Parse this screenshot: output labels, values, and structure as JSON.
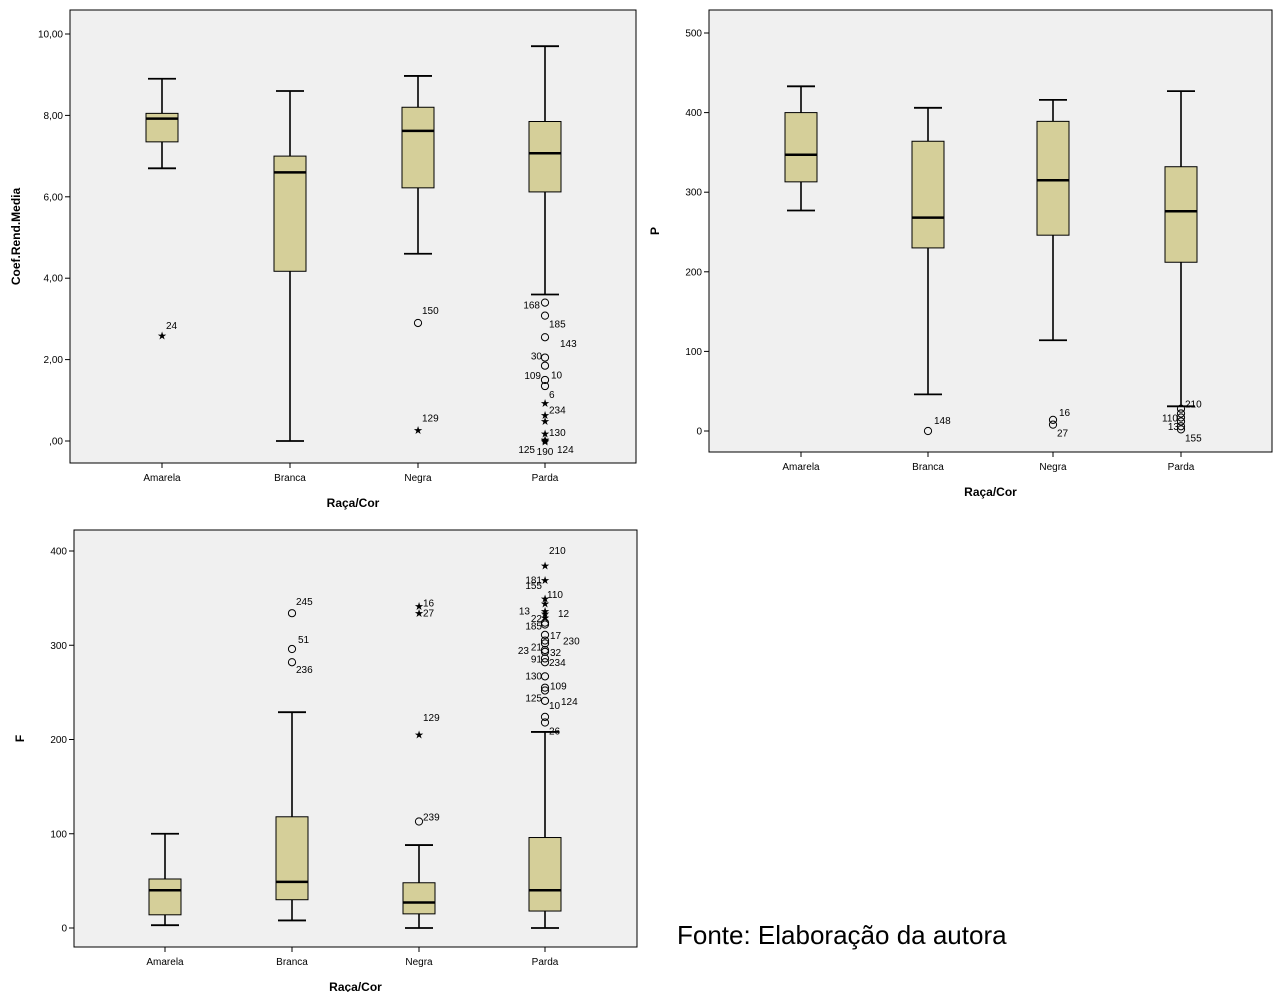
{
  "caption": "Fonte: Elaboração da autora",
  "colors": {
    "box_fill": "#d5cf99",
    "plot_bg": "#f0f0f0",
    "line": "#000000"
  },
  "chart_data": [
    {
      "type": "box",
      "xlabel": "Raça/Cor",
      "ylabel": "Coef.Rend.Media",
      "ylim": [
        0,
        10
      ],
      "yticks": [
        0,
        2,
        4,
        6,
        8,
        10
      ],
      "ytick_labels": [
        ",00",
        "2,00",
        "4,00",
        "6,00",
        "8,00",
        "10,00"
      ],
      "grid": false,
      "categories": [
        "Amarela",
        "Branca",
        "Negra",
        "Parda"
      ],
      "boxes": [
        {
          "min": 6.7,
          "q1": 7.35,
          "median": 7.92,
          "q3": 8.05,
          "max": 8.9
        },
        {
          "min": 0.0,
          "q1": 4.17,
          "median": 6.6,
          "q3": 7.0,
          "max": 8.6
        },
        {
          "min": 4.6,
          "q1": 6.22,
          "median": 7.62,
          "q3": 8.2,
          "max": 8.97
        },
        {
          "min": 3.6,
          "q1": 6.12,
          "median": 7.07,
          "q3": 7.85,
          "max": 9.7
        }
      ],
      "outliers": [
        {
          "category": 0,
          "value": 2.6,
          "marker": "star",
          "label": "24"
        },
        {
          "category": 2,
          "value": 2.9,
          "marker": "circle",
          "label": "150"
        },
        {
          "category": 2,
          "value": 0.28,
          "marker": "star",
          "label": "129"
        },
        {
          "category": 3,
          "value": 3.4,
          "marker": "circle",
          "label": "168"
        },
        {
          "category": 3,
          "value": 3.08,
          "marker": "circle",
          "label": "185"
        },
        {
          "category": 3,
          "value": 2.55,
          "marker": "circle",
          "label": "143"
        },
        {
          "category": 3,
          "value": 2.05,
          "marker": "circle",
          "label": "30"
        },
        {
          "category": 3,
          "value": 1.85,
          "marker": "circle",
          "label": "10"
        },
        {
          "category": 3,
          "value": 1.5,
          "marker": "circle",
          "label": "109"
        },
        {
          "category": 3,
          "value": 1.35,
          "marker": "circle",
          "label": "6"
        },
        {
          "category": 3,
          "value": 0.95,
          "marker": "star",
          "label": ""
        },
        {
          "category": 3,
          "value": 0.65,
          "marker": "star",
          "label": "234"
        },
        {
          "category": 3,
          "value": 0.5,
          "marker": "star",
          "label": ""
        },
        {
          "category": 3,
          "value": 0.2,
          "marker": "star",
          "label": "130"
        },
        {
          "category": 3,
          "value": 0.05,
          "marker": "star",
          "label": "125"
        },
        {
          "category": 3,
          "value": 0.0,
          "marker": "star",
          "label": "190"
        },
        {
          "category": 3,
          "value": 0.02,
          "marker": "star",
          "label": "124"
        }
      ]
    },
    {
      "type": "box",
      "xlabel": "Raça/Cor",
      "ylabel": "P",
      "ylim": [
        -27,
        525
      ],
      "yticks": [
        0,
        100,
        200,
        300,
        400,
        500
      ],
      "ytick_labels": [
        "0",
        "100",
        "200",
        "300",
        "400",
        "500"
      ],
      "grid": false,
      "categories": [
        "Amarela",
        "Branca",
        "Negra",
        "Parda"
      ],
      "boxes": [
        {
          "min": 277,
          "q1": 313,
          "median": 347,
          "q3": 400,
          "max": 433
        },
        {
          "min": 46,
          "q1": 230,
          "median": 268,
          "q3": 364,
          "max": 406
        },
        {
          "min": 114,
          "q1": 246,
          "median": 315,
          "q3": 389,
          "max": 416
        },
        {
          "min": 31,
          "q1": 212,
          "median": 276,
          "q3": 332,
          "max": 427
        }
      ],
      "outliers": [
        {
          "category": 1,
          "value": 0,
          "marker": "circle",
          "label": "148"
        },
        {
          "category": 2,
          "value": 14,
          "marker": "circle",
          "label": "16"
        },
        {
          "category": 2,
          "value": 8,
          "marker": "circle",
          "label": "27"
        },
        {
          "category": 3,
          "value": 28,
          "marker": "circle",
          "label": "210"
        },
        {
          "category": 3,
          "value": 22,
          "marker": "circle",
          "label": ""
        },
        {
          "category": 3,
          "value": 17,
          "marker": "circle",
          "label": "110"
        },
        {
          "category": 3,
          "value": 12,
          "marker": "circle",
          "label": ""
        },
        {
          "category": 3,
          "value": 6,
          "marker": "circle",
          "label": "13"
        },
        {
          "category": 3,
          "value": 2,
          "marker": "circle",
          "label": "155"
        }
      ]
    },
    {
      "type": "box",
      "xlabel": "Raça/Cor",
      "ylabel": "F",
      "ylim": [
        -16,
        412
      ],
      "yticks": [
        0,
        100,
        200,
        300,
        400
      ],
      "ytick_labels": [
        "0",
        "100",
        "200",
        "300",
        "400"
      ],
      "grid": false,
      "categories": [
        "Amarela",
        "Branca",
        "Negra",
        "Parda"
      ],
      "boxes": [
        {
          "min": 3,
          "q1": 14,
          "median": 40,
          "q3": 52,
          "max": 100
        },
        {
          "min": 8,
          "q1": 30,
          "median": 49,
          "q3": 118,
          "max": 229
        },
        {
          "min": 0,
          "q1": 15,
          "median": 27,
          "q3": 48,
          "max": 88
        },
        {
          "min": 0,
          "q1": 18,
          "median": 40,
          "q3": 96,
          "max": 208
        }
      ],
      "outliers": [
        {
          "category": 1,
          "value": 334,
          "marker": "circle",
          "label": "245"
        },
        {
          "category": 1,
          "value": 296,
          "marker": "circle",
          "label": "51"
        },
        {
          "category": 1,
          "value": 282,
          "marker": "circle",
          "label": "236"
        },
        {
          "category": 2,
          "value": 342,
          "marker": "star",
          "label": "16"
        },
        {
          "category": 2,
          "value": 335,
          "marker": "star",
          "label": "27"
        },
        {
          "category": 2,
          "value": 206,
          "marker": "star",
          "label": "129"
        },
        {
          "category": 2,
          "value": 113,
          "marker": "circle",
          "label": "239"
        },
        {
          "category": 3,
          "value": 385,
          "marker": "star",
          "label": "210"
        },
        {
          "category": 3,
          "value": 370,
          "marker": "star",
          "label": "181"
        },
        {
          "category": 3,
          "value": 350,
          "marker": "star",
          "label": "155"
        },
        {
          "category": 3,
          "value": 345,
          "marker": "star",
          "label": "110"
        },
        {
          "category": 3,
          "value": 337,
          "marker": "star",
          "label": "13"
        },
        {
          "category": 3,
          "value": 334,
          "marker": "star",
          "label": "12"
        },
        {
          "category": 3,
          "value": 330,
          "marker": "star",
          "label": "22"
        },
        {
          "category": 3,
          "value": 324,
          "marker": "circle",
          "label": ""
        },
        {
          "category": 3,
          "value": 322,
          "marker": "circle",
          "label": "185"
        },
        {
          "category": 3,
          "value": 311,
          "marker": "circle",
          "label": "17"
        },
        {
          "category": 3,
          "value": 305,
          "marker": "circle",
          "label": "230"
        },
        {
          "category": 3,
          "value": 302,
          "marker": "circle",
          "label": "21"
        },
        {
          "category": 3,
          "value": 295,
          "marker": "circle",
          "label": "23"
        },
        {
          "category": 3,
          "value": 293,
          "marker": "circle",
          "label": "32"
        },
        {
          "category": 3,
          "value": 286,
          "marker": "circle",
          "label": "91"
        },
        {
          "category": 3,
          "value": 282,
          "marker": "circle",
          "label": "234"
        },
        {
          "category": 3,
          "value": 267,
          "marker": "circle",
          "label": "130"
        },
        {
          "category": 3,
          "value": 255,
          "marker": "circle",
          "label": "109"
        },
        {
          "category": 3,
          "value": 252,
          "marker": "circle",
          "label": "125"
        },
        {
          "category": 3,
          "value": 241,
          "marker": "circle",
          "label": "124"
        },
        {
          "category": 3,
          "value": 224,
          "marker": "circle",
          "label": "10"
        },
        {
          "category": 3,
          "value": 218,
          "marker": "circle",
          "label": "26"
        }
      ]
    }
  ]
}
